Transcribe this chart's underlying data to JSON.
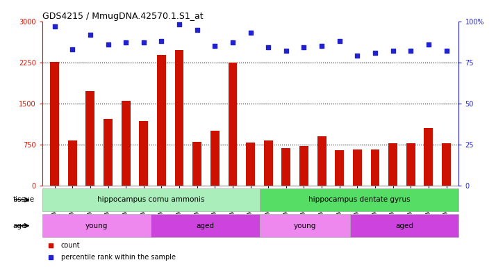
{
  "title": "GDS4215 / MmugDNA.42570.1.S1_at",
  "samples": [
    "GSM297138",
    "GSM297139",
    "GSM297140",
    "GSM297141",
    "GSM297142",
    "GSM297143",
    "GSM297144",
    "GSM297145",
    "GSM297146",
    "GSM297147",
    "GSM297148",
    "GSM297149",
    "GSM297150",
    "GSM297151",
    "GSM297152",
    "GSM297153",
    "GSM297154",
    "GSM297155",
    "GSM297156",
    "GSM297157",
    "GSM297158",
    "GSM297159",
    "GSM297160"
  ],
  "counts": [
    2260,
    820,
    1720,
    1210,
    1540,
    1180,
    2380,
    2470,
    800,
    1000,
    2250,
    780,
    820,
    680,
    720,
    900,
    640,
    660,
    660,
    770,
    770,
    1050,
    770
  ],
  "percentiles": [
    97,
    83,
    92,
    86,
    87,
    87,
    88,
    98,
    95,
    85,
    87,
    93,
    84,
    82,
    84,
    85,
    88,
    79,
    81,
    82,
    82,
    86,
    82
  ],
  "bar_color": "#cc1100",
  "dot_color": "#2222cc",
  "ylim_left": [
    0,
    3000
  ],
  "ylim_right": [
    0,
    100
  ],
  "yticks_left": [
    0,
    750,
    1500,
    2250,
    3000
  ],
  "yticks_right": [
    0,
    25,
    50,
    75,
    100
  ],
  "grid_lines": [
    750,
    1500,
    2250
  ],
  "tissue_groups": [
    {
      "label": "hippocampus cornu ammonis",
      "start": 0,
      "end": 12,
      "color": "#aaeebb"
    },
    {
      "label": "hippocampus dentate gyrus",
      "start": 12,
      "end": 23,
      "color": "#55dd66"
    }
  ],
  "age_groups": [
    {
      "label": "young",
      "start": 0,
      "end": 6,
      "color": "#ee88ee"
    },
    {
      "label": "aged",
      "start": 6,
      "end": 12,
      "color": "#cc44dd"
    },
    {
      "label": "young",
      "start": 12,
      "end": 17,
      "color": "#ee88ee"
    },
    {
      "label": "aged",
      "start": 17,
      "end": 23,
      "color": "#cc44dd"
    }
  ],
  "tissue_label": "tissue",
  "age_label": "age",
  "legend_count": "count",
  "legend_percentile": "percentile rank within the sample",
  "fig_bg": "#ffffff",
  "plot_bg": "#ffffff"
}
